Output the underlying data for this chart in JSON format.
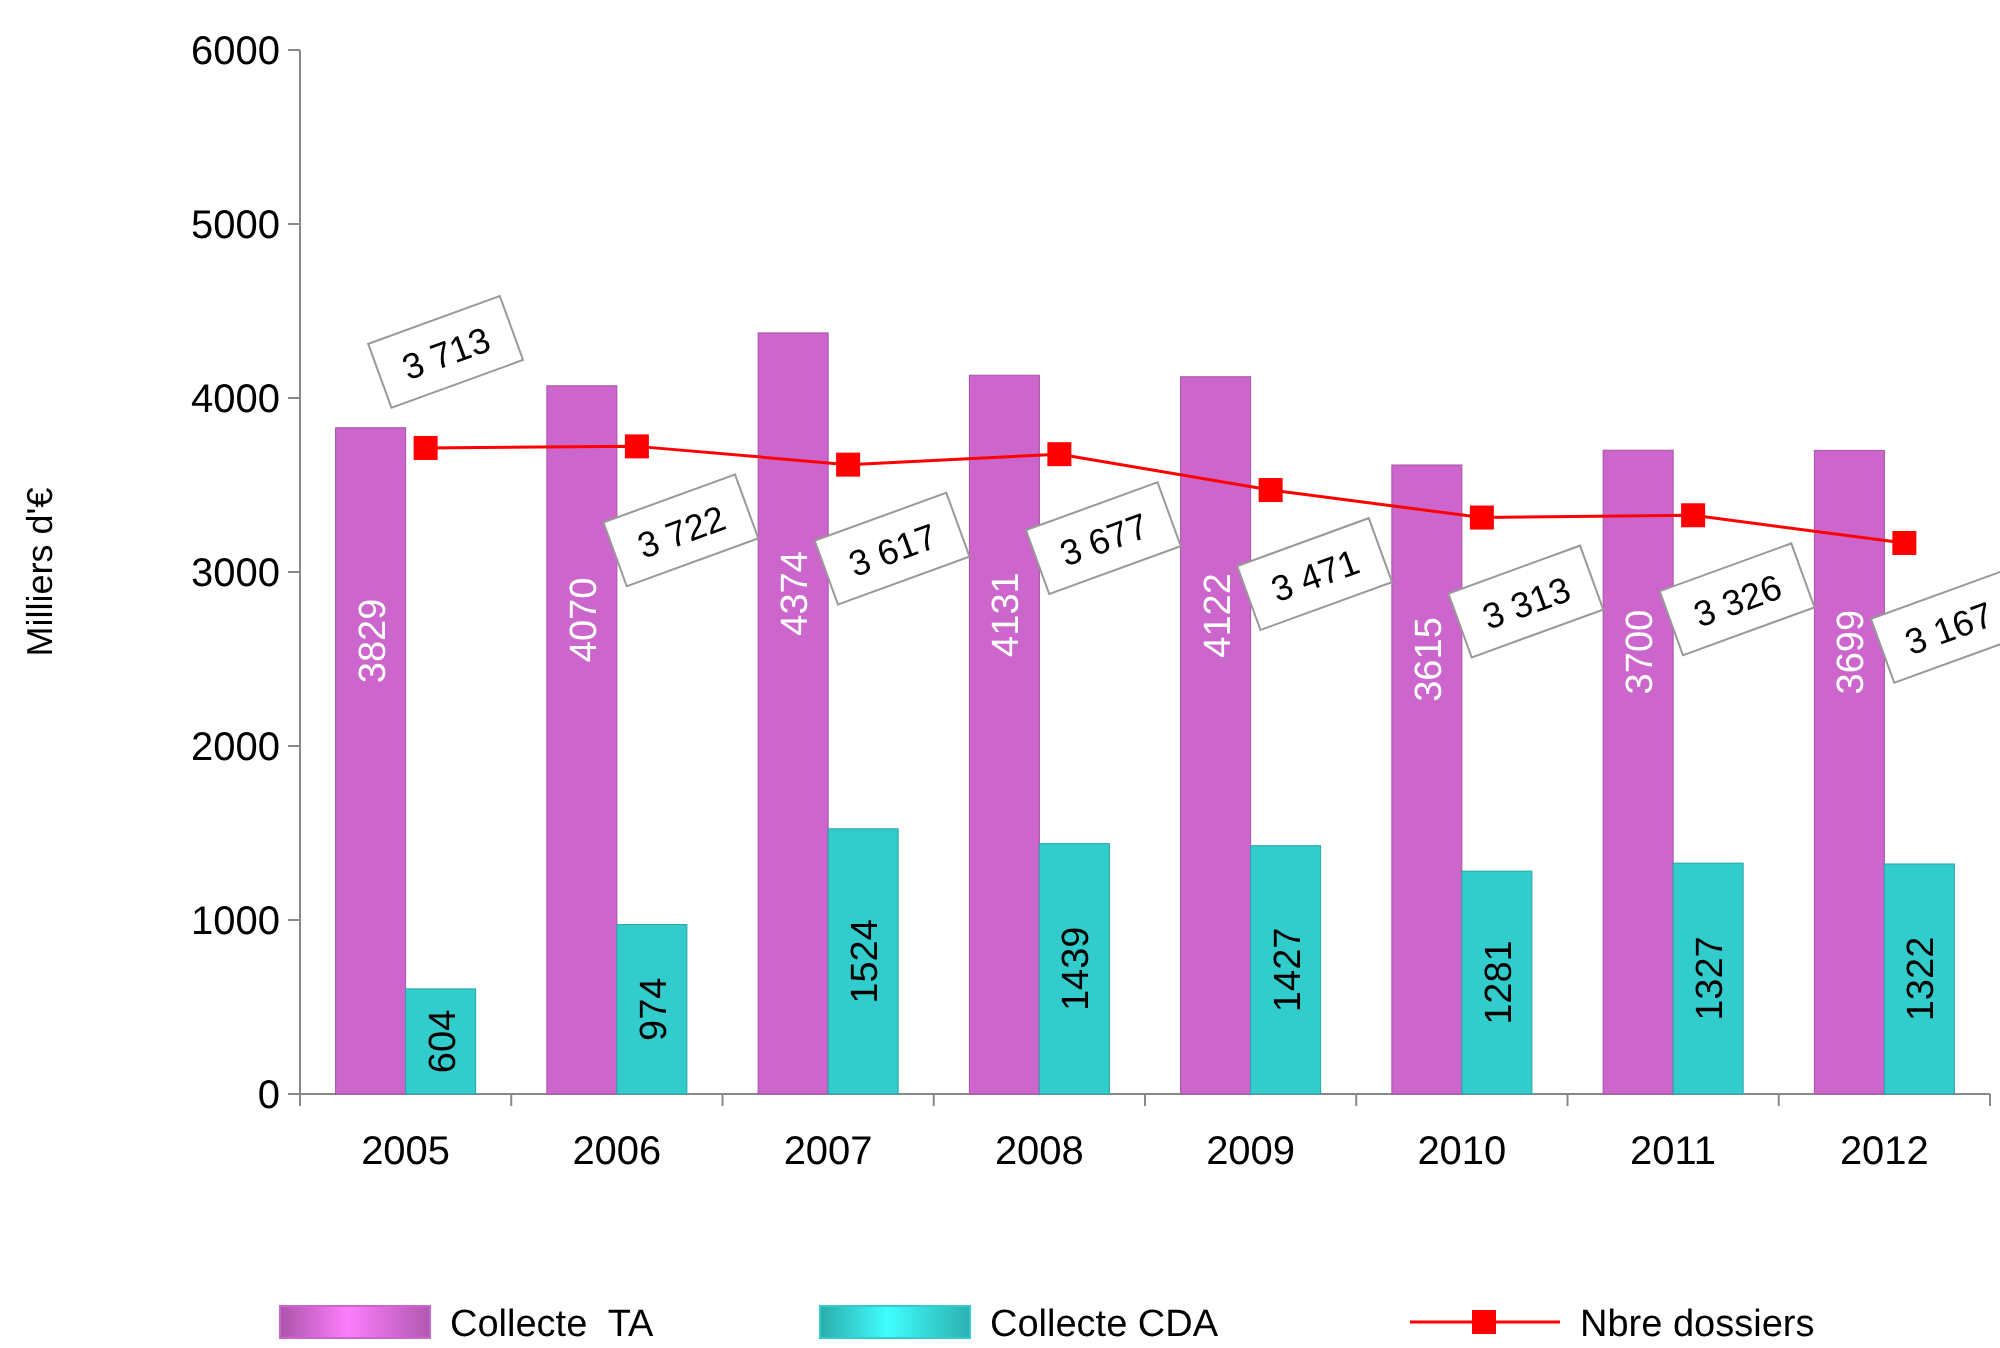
{
  "chart_data": {
    "type": "bar",
    "ylabel": "Milliers d'€",
    "categories": [
      "2005",
      "2006",
      "2007",
      "2008",
      "2009",
      "2010",
      "2011",
      "2012"
    ],
    "ylim": [
      0,
      6000
    ],
    "yticks": [
      0,
      1000,
      2000,
      3000,
      4000,
      5000,
      6000
    ],
    "tick_labels": "xy",
    "grid": false,
    "legend": "bottom",
    "series": [
      {
        "name": "Collecte  TA",
        "color": "#cc66cc",
        "values": [
          3829,
          4070,
          4374,
          4131,
          4122,
          3615,
          3700,
          3699
        ],
        "value_labels": [
          "3829",
          "4070",
          "4374",
          "4131",
          "4122",
          "3615",
          "3700",
          "3699"
        ]
      },
      {
        "name": "Collecte CDA",
        "color": "#33cccc",
        "values": [
          604,
          974,
          1524,
          1439,
          1427,
          1281,
          1327,
          1322
        ],
        "value_labels": [
          "604",
          "974",
          "1524",
          "1439",
          "1427",
          "1281",
          "1327",
          "1322"
        ]
      },
      {
        "name": "Nbre dossiers",
        "type": "line",
        "color": "#ff0000",
        "marker": "square",
        "line_style": "solid",
        "values": [
          3713,
          3722,
          3617,
          3677,
          3471,
          3313,
          3326,
          3167
        ],
        "value_labels": [
          "3 713",
          "3 722",
          "3 617",
          "3 677",
          "3 471",
          "3 313",
          "3 326",
          "3 167"
        ]
      }
    ]
  }
}
